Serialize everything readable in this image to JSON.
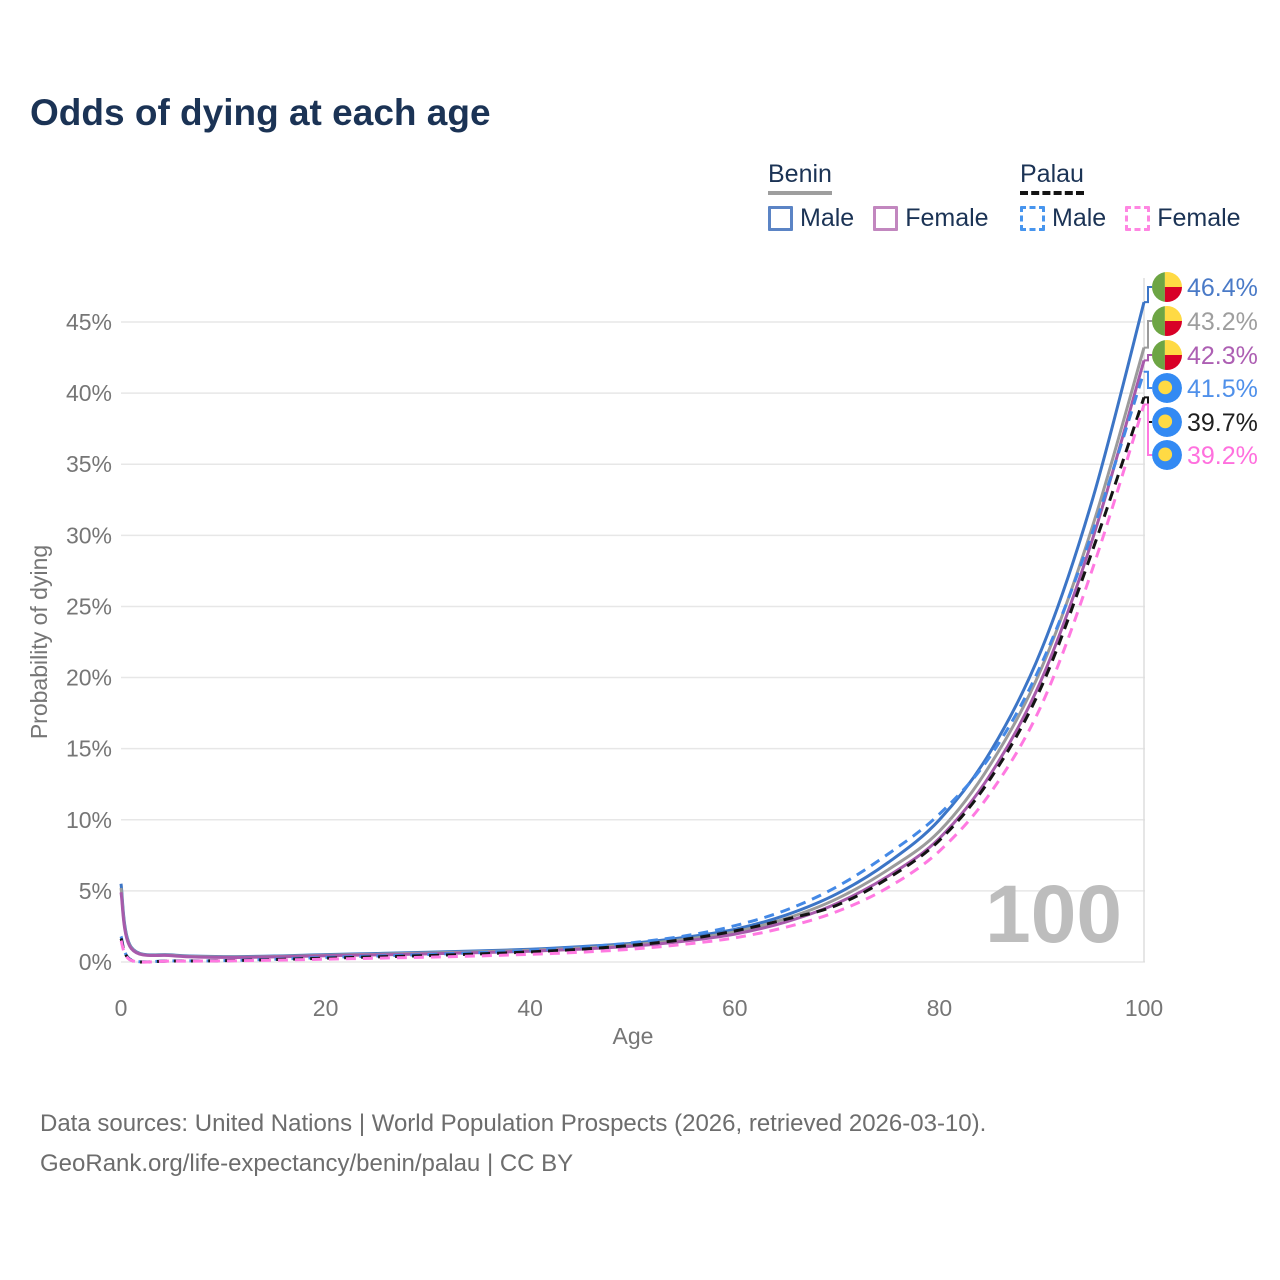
{
  "header": {
    "title": "Odds of dying at each age"
  },
  "legend": {
    "groups": [
      {
        "country": "Benin",
        "line_style": "solid",
        "underline_color": "#9e9e9e",
        "items": [
          {
            "label": "Male",
            "color": "#5b84c5",
            "dashed": false
          },
          {
            "label": "Female",
            "color": "#c287bf",
            "dashed": false
          }
        ]
      },
      {
        "country": "Palau",
        "line_style": "dashed",
        "underline_color": "#141414",
        "items": [
          {
            "label": "Male",
            "color": "#4795ee",
            "dashed": true
          },
          {
            "label": "Female",
            "color": "#ff86e2",
            "dashed": true
          }
        ]
      }
    ]
  },
  "chart_data": {
    "type": "line",
    "title": "Odds of dying at each age",
    "xlabel": "Age",
    "ylabel": "Probability of dying",
    "xlim": [
      0,
      100
    ],
    "ylim_percent": [
      0,
      48
    ],
    "grid": true,
    "legend_position": "top-right",
    "age_counter": "100",
    "x_ticks": [
      0,
      20,
      40,
      60,
      80,
      100
    ],
    "x_tick_labels": [
      "0",
      "20",
      "40",
      "60",
      "80",
      "100"
    ],
    "y_ticks": [
      0,
      5,
      10,
      15,
      20,
      25,
      30,
      35,
      40,
      45
    ],
    "y_tick_labels": [
      "0%",
      "5%",
      "10%",
      "15%",
      "20%",
      "25%",
      "30%",
      "35%",
      "40%",
      "45%"
    ],
    "ages": [
      0,
      1,
      5,
      10,
      15,
      20,
      25,
      30,
      35,
      40,
      45,
      50,
      55,
      60,
      65,
      70,
      75,
      80,
      85,
      90,
      95,
      100
    ],
    "series": [
      {
        "id": "benin-male",
        "name": "Benin Male",
        "country": "Benin",
        "sex": "Male",
        "style": "solid",
        "color": "#3c75c6",
        "label_color": "#4a7ac7",
        "flag": "benin",
        "end_label": "46.4%",
        "end_value": 46.4,
        "values": [
          5.5,
          1.05,
          0.5,
          0.38,
          0.42,
          0.52,
          0.6,
          0.68,
          0.78,
          0.9,
          1.08,
          1.32,
          1.72,
          2.3,
          3.3,
          4.8,
          7.0,
          10.0,
          14.8,
          22.0,
          32.6,
          46.4
        ]
      },
      {
        "id": "benin-total",
        "name": "Benin Both sexes",
        "country": "Benin",
        "sex": "Both",
        "style": "solid",
        "color": "#9b9b9b",
        "label_color": "#9e9e9e",
        "flag": "benin",
        "end_label": "43.2%",
        "end_value": 43.2,
        "values": [
          5.2,
          1.0,
          0.47,
          0.35,
          0.39,
          0.48,
          0.55,
          0.63,
          0.72,
          0.83,
          0.99,
          1.22,
          1.58,
          2.12,
          3.05,
          4.45,
          6.5,
          9.2,
          13.9,
          20.7,
          30.7,
          43.2
        ]
      },
      {
        "id": "benin-female",
        "name": "Benin Female",
        "country": "Benin",
        "sex": "Female",
        "style": "solid",
        "color": "#a75aab",
        "label_color": "#ad5fb3",
        "flag": "benin",
        "end_label": "42.3%",
        "end_value": 42.3,
        "values": [
          4.9,
          0.95,
          0.44,
          0.32,
          0.36,
          0.44,
          0.5,
          0.57,
          0.66,
          0.76,
          0.91,
          1.12,
          1.46,
          1.96,
          2.82,
          4.12,
          6.05,
          8.7,
          13.2,
          19.9,
          29.8,
          42.3
        ]
      },
      {
        "id": "palau-male",
        "name": "Palau Male",
        "country": "Palau",
        "sex": "Male",
        "style": "dashed",
        "color": "#4489e6",
        "label_color": "#4f90ea",
        "flag": "palau",
        "end_label": "41.5%",
        "end_value": 41.5,
        "values": [
          1.8,
          0.15,
          0.08,
          0.1,
          0.2,
          0.32,
          0.42,
          0.53,
          0.66,
          0.82,
          1.04,
          1.36,
          1.82,
          2.55,
          3.65,
          5.3,
          7.6,
          10.4,
          14.5,
          21.0,
          30.3,
          41.5
        ]
      },
      {
        "id": "palau-total",
        "name": "Palau Both sexes",
        "country": "Palau",
        "sex": "Both",
        "style": "dashed",
        "color": "#141414",
        "label_color": "#1f1f1f",
        "flag": "palau",
        "end_label": "39.7%",
        "end_value": 39.7,
        "values": [
          1.65,
          0.13,
          0.07,
          0.09,
          0.17,
          0.27,
          0.36,
          0.45,
          0.57,
          0.71,
          0.9,
          1.18,
          1.58,
          2.18,
          3.0,
          4.0,
          5.9,
          8.55,
          12.9,
          19.4,
          29.0,
          39.7
        ]
      },
      {
        "id": "palau-female",
        "name": "Palau Female",
        "country": "Palau",
        "sex": "Female",
        "style": "dashed",
        "color": "#ff79e1",
        "label_color": "#ff70de",
        "flag": "palau",
        "end_label": "39.2%",
        "end_value": 39.2,
        "values": [
          1.5,
          0.11,
          0.06,
          0.08,
          0.13,
          0.2,
          0.27,
          0.34,
          0.43,
          0.54,
          0.69,
          0.91,
          1.24,
          1.7,
          2.45,
          3.55,
          5.25,
          7.8,
          11.9,
          18.1,
          27.7,
          39.2
        ]
      }
    ],
    "flag_colors": {
      "benin_green": "#6DA544",
      "benin_yellow": "#FFDA44",
      "benin_red": "#D80027",
      "palau_blue": "#338AF3",
      "palau_yellow": "#FFDA44"
    }
  },
  "footer": {
    "line1": "Data sources: United Nations | World Population Prospects (2026, retrieved 2026-03-10).",
    "line2": "GeoRank.org/life-expectancy/benin/palau | CC BY"
  }
}
